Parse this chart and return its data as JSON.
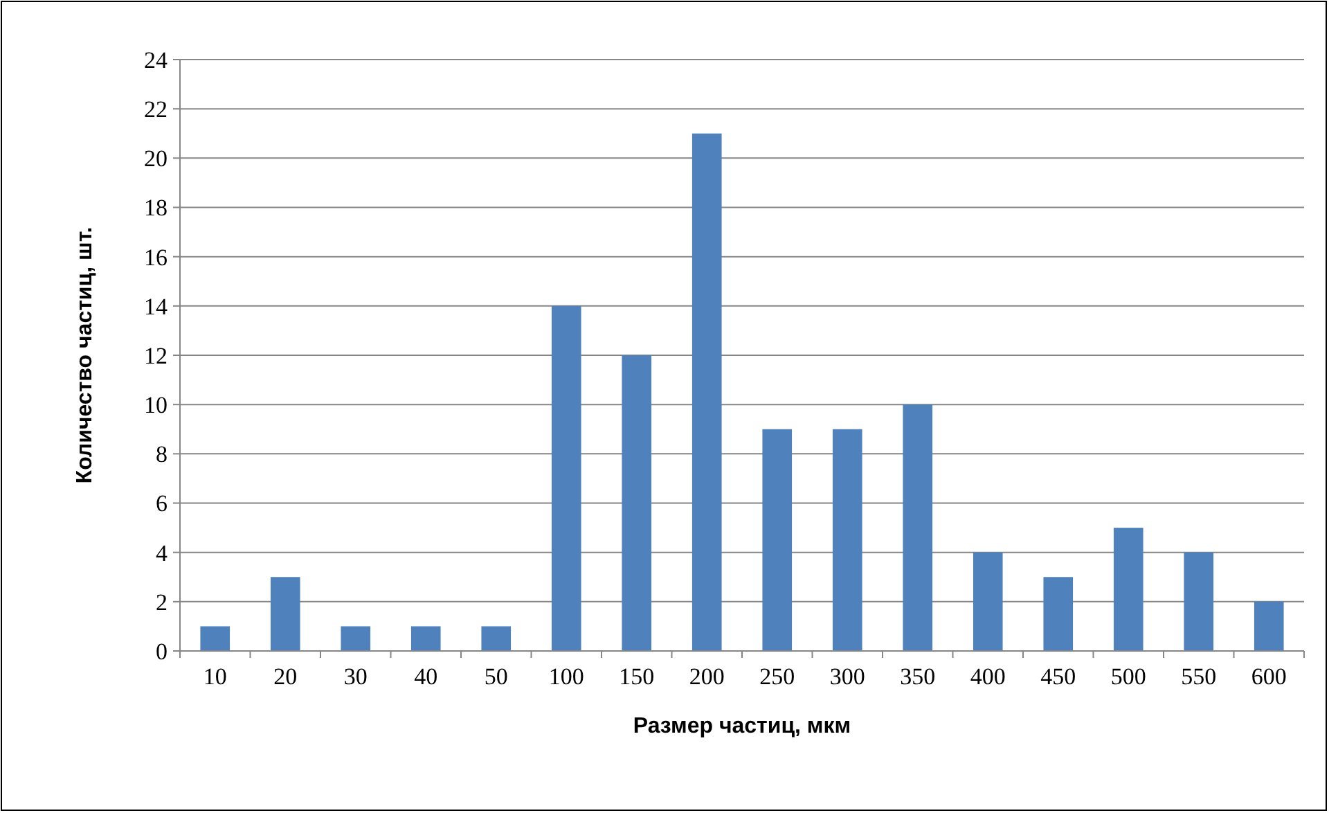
{
  "chart_data": {
    "type": "bar",
    "xlabel": "Размер частиц, мкм",
    "ylabel": "Количество частиц, шт.",
    "categories": [
      "10",
      "20",
      "30",
      "40",
      "50",
      "100",
      "150",
      "200",
      "250",
      "300",
      "350",
      "400",
      "450",
      "500",
      "550",
      "600"
    ],
    "values": [
      1,
      3,
      1,
      1,
      1,
      14,
      12,
      21,
      9,
      9,
      10,
      4,
      3,
      5,
      4,
      2
    ],
    "color": "#4f81bd",
    "ylim": [
      0,
      24
    ],
    "yticks": [
      0,
      2,
      4,
      6,
      8,
      10,
      12,
      14,
      16,
      18,
      20,
      22,
      24
    ],
    "grid": "y"
  }
}
